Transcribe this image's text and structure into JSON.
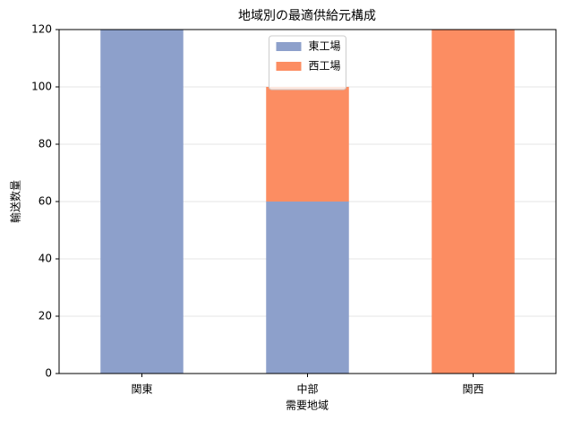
{
  "chart_data": {
    "type": "stacked_bar",
    "title": "地域別の最適供給元構成",
    "xlabel": "需要地域",
    "ylabel": "輸送数量",
    "categories": [
      "関東",
      "中部",
      "関西"
    ],
    "series": [
      {
        "name": "東工場",
        "color": "#8da0cb",
        "values": [
          120,
          60,
          0
        ]
      },
      {
        "name": "西工場",
        "color": "#fc8d62",
        "values": [
          0,
          40,
          120
        ]
      }
    ],
    "ylim": [
      0,
      120
    ],
    "yticks": [
      0,
      20,
      40,
      60,
      80,
      100,
      120
    ],
    "grid": true,
    "legend": "upper center"
  }
}
